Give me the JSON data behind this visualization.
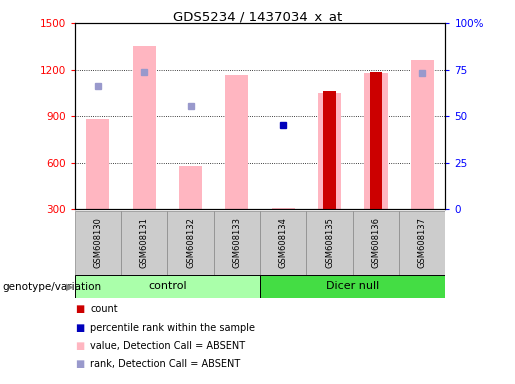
{
  "title": "GDS5234 / 1437034_x_at",
  "samples": [
    "GSM608130",
    "GSM608131",
    "GSM608132",
    "GSM608133",
    "GSM608134",
    "GSM608135",
    "GSM608136",
    "GSM608137"
  ],
  "ylim_left": [
    300,
    1500
  ],
  "ylim_right": [
    0,
    100
  ],
  "yticks_left": [
    300,
    600,
    900,
    1200,
    1500
  ],
  "yticks_right": [
    0,
    25,
    50,
    75,
    100
  ],
  "yticklabels_right": [
    "0",
    "25",
    "50",
    "75",
    "100%"
  ],
  "pink_bars": [
    880,
    1350,
    580,
    1165,
    null,
    1050,
    1175,
    1265
  ],
  "pink_bar_color": "#FFB6C1",
  "red_bars": [
    null,
    null,
    null,
    null,
    null,
    1060,
    1185,
    null
  ],
  "red_bar_color": "#CC0000",
  "pink_stub_bars": [
    null,
    null,
    null,
    null,
    310,
    null,
    null,
    null
  ],
  "blue_dots": [
    null,
    null,
    null,
    null,
    840,
    null,
    null,
    null
  ],
  "blue_dot_color": "#0000BB",
  "light_blue_dots": [
    1095,
    1185,
    965,
    null,
    null,
    null,
    null,
    1175
  ],
  "light_blue_dot_color": "#9999CC",
  "control_color": "#AAFFAA",
  "dicer_color": "#44DD44",
  "group_label": "genotype/variation"
}
